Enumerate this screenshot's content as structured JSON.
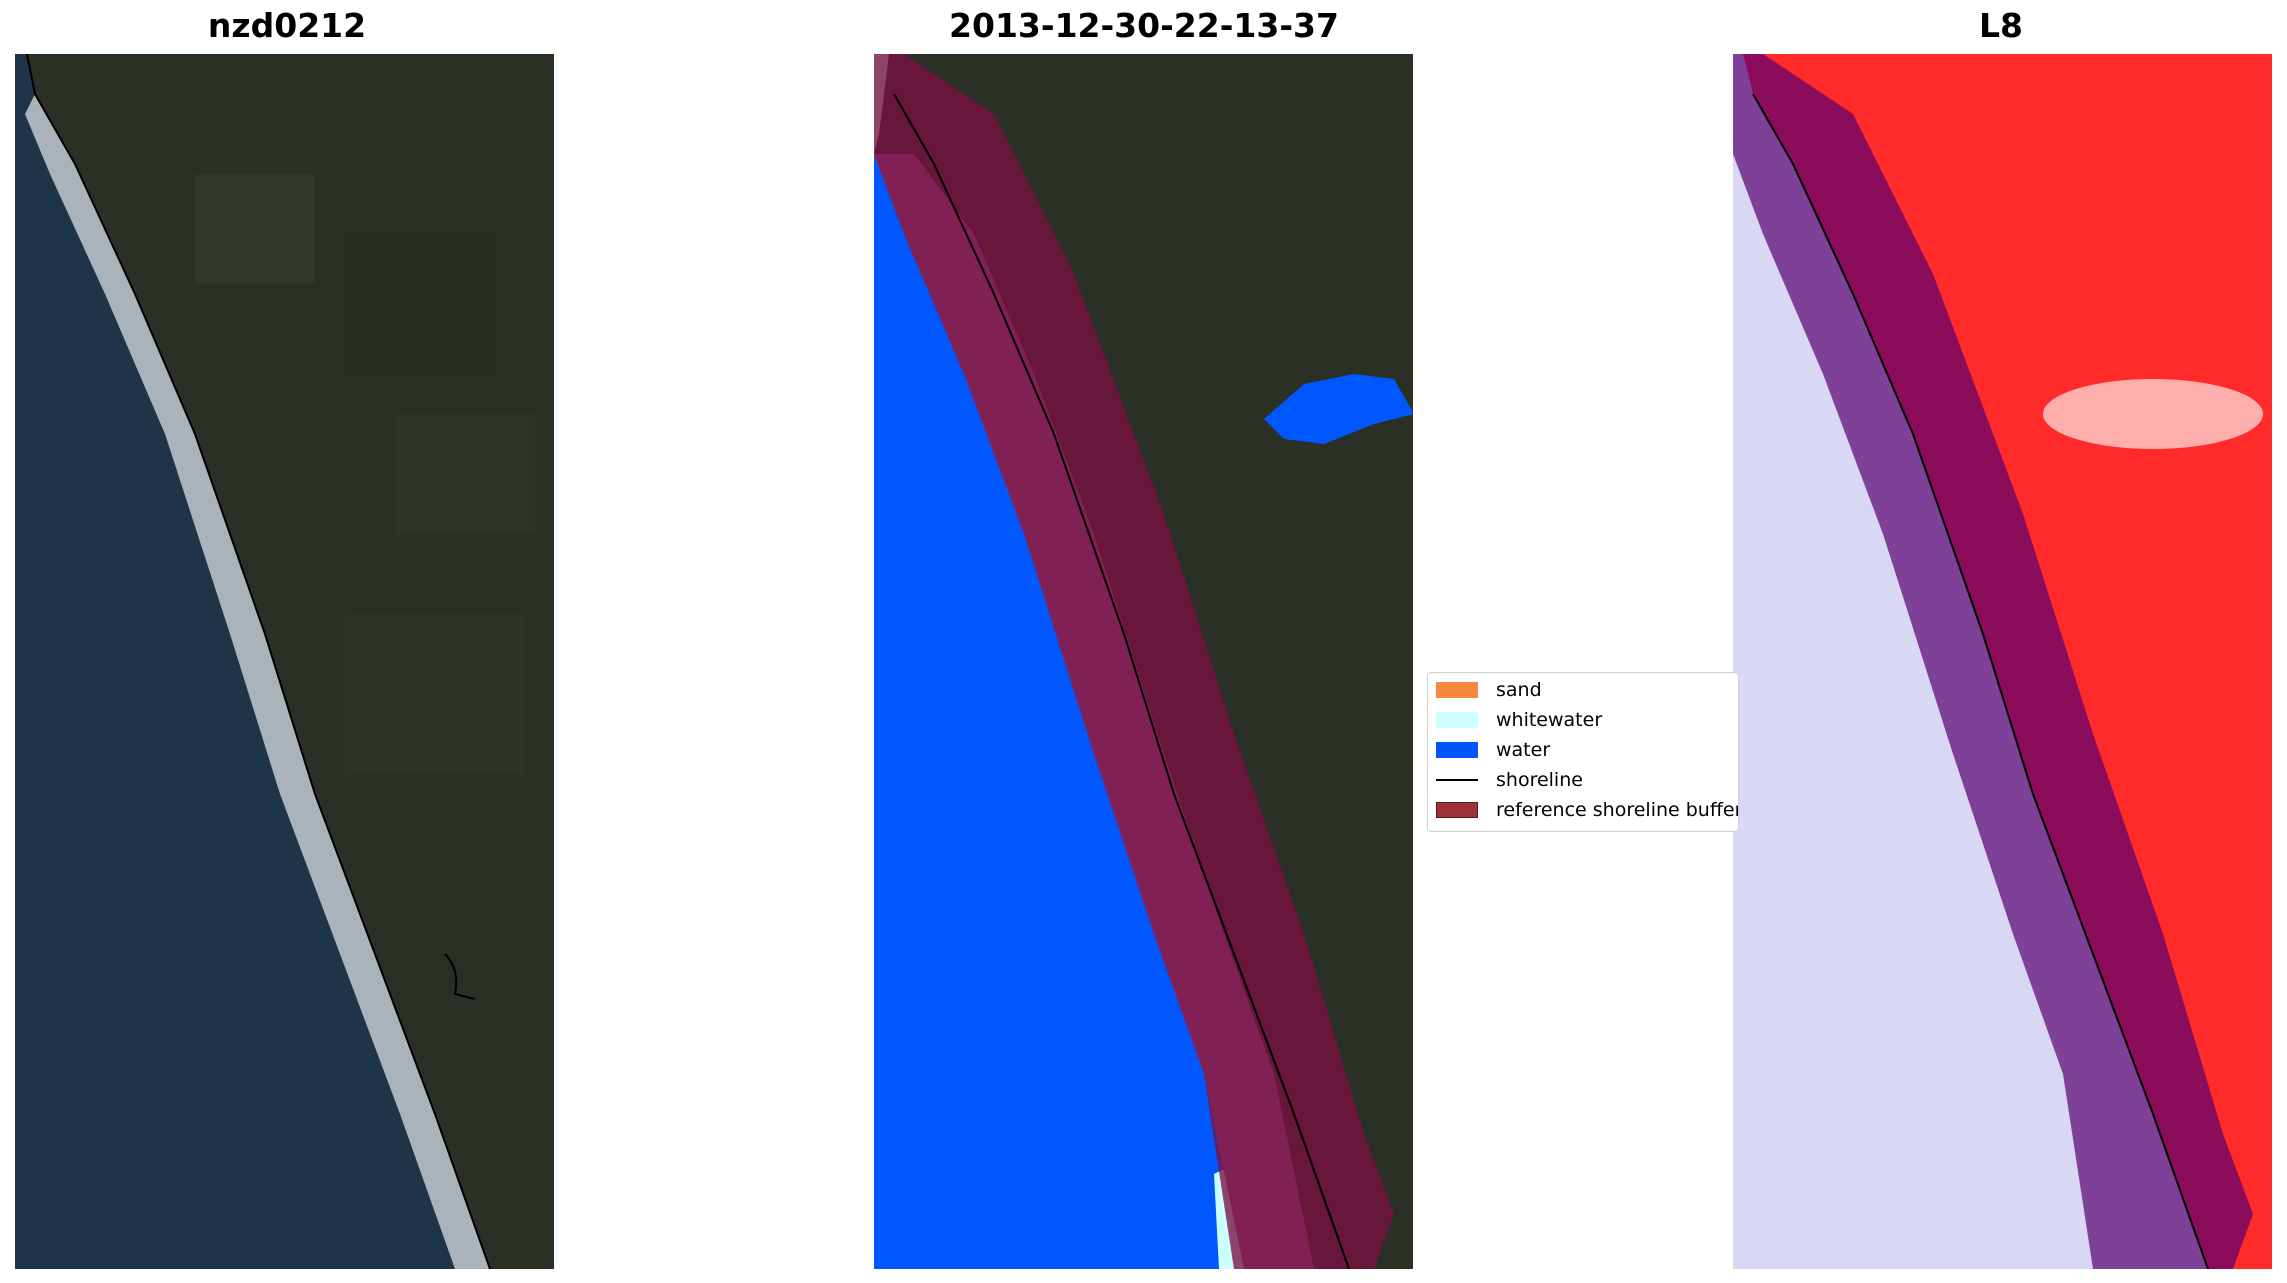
{
  "panels": [
    {
      "title": "nzd0212"
    },
    {
      "title": "2013-12-30-22-13-37"
    },
    {
      "title": "L8"
    }
  ],
  "legend": {
    "items": [
      {
        "label": "sand",
        "kind": "patch",
        "color": "#f58a3c"
      },
      {
        "label": "whitewater",
        "kind": "patch",
        "color": "#ccffff"
      },
      {
        "label": "water",
        "kind": "patch",
        "color": "#0055ff"
      },
      {
        "label": "shoreline",
        "kind": "line",
        "color": "#000000"
      },
      {
        "label": "reference shoreline buffer",
        "kind": "patch",
        "color": "#9b3336"
      }
    ]
  },
  "colors": {
    "land": "#2b3027",
    "ocean": "#1e3448",
    "surf": "#d9dde0",
    "classified_water": "#0057fd",
    "classified_whitewater": "#ccffff",
    "buffer_overlay": "#7a1040",
    "mndwi_water": "#d8d8f4",
    "mndwi_land": "#ff2222",
    "shoreline": "#000000"
  }
}
